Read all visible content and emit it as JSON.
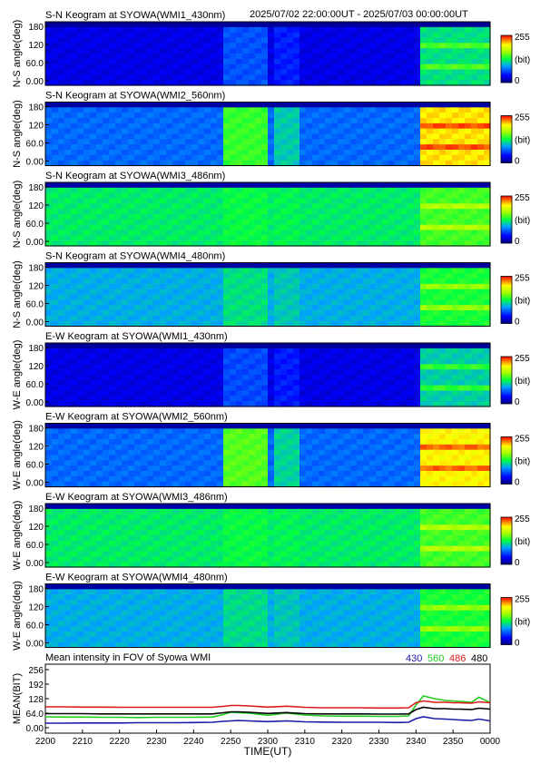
{
  "header": {
    "time_range": "2025/07/02 22:00:00UT - 2025/07/03 00:00:00UT"
  },
  "keogram_ylabels": {
    "ns": "N-S angle(deg)",
    "we": "W-E angle(deg)"
  },
  "keogram_yticks": [
    "180",
    "120",
    "60.0",
    "0.00"
  ],
  "colorbar": {
    "max": "255",
    "unit": "(bit)",
    "min": "0"
  },
  "panels": [
    {
      "title": "S-N Keogram at SYOWA(WMI1_430nm)",
      "axis": "ns",
      "base": 0.12,
      "act": 0.25,
      "ev": 0.45,
      "strip": 0.03
    },
    {
      "title": "S-N Keogram at SYOWA(WMI2_560nm)",
      "axis": "ns",
      "base": 0.28,
      "act": 0.55,
      "ev": 0.82,
      "strip": 0.04
    },
    {
      "title": "S-N Keogram at SYOWA(WMI3_486nm)",
      "axis": "ns",
      "base": 0.47,
      "act": 0.5,
      "ev": 0.56,
      "strip": 0.05
    },
    {
      "title": "S-N Keogram at SYOWA(WMI4_480nm)",
      "axis": "ns",
      "base": 0.37,
      "act": 0.45,
      "ev": 0.52,
      "strip": 0.04
    },
    {
      "title": "E-W Keogram at SYOWA(WMI1_430nm)",
      "axis": "we",
      "base": 0.12,
      "act": 0.24,
      "ev": 0.42,
      "strip": 0.03
    },
    {
      "title": "E-W Keogram at SYOWA(WMI2_560nm)",
      "axis": "we",
      "base": 0.28,
      "act": 0.58,
      "ev": 0.8,
      "strip": 0.04
    },
    {
      "title": "E-W Keogram at SYOWA(WMI3_486nm)",
      "axis": "we",
      "base": 0.47,
      "act": 0.5,
      "ev": 0.56,
      "strip": 0.05
    },
    {
      "title": "E-W Keogram at SYOWA(WMI4_480nm)",
      "axis": "we",
      "base": 0.37,
      "act": 0.44,
      "ev": 0.52,
      "strip": 0.04
    }
  ],
  "mean_panel": {
    "title": "Mean intensity in FOV of Syowa WMI",
    "ylabel": "MEAN(BIT)",
    "xlabel": "TIME(UT)",
    "yticks": [
      "256",
      "192",
      "128",
      "64.0",
      "0.00"
    ],
    "xticks": [
      "2200",
      "2210",
      "2220",
      "2230",
      "2240",
      "2250",
      "2300",
      "2310",
      "2320",
      "2330",
      "2340",
      "2350",
      "0000"
    ],
    "legend": [
      {
        "label": "430",
        "color": "#1a1aa8"
      },
      {
        "label": "560",
        "color": "#22cc22"
      },
      {
        "label": "486",
        "color": "#dd1a1a"
      },
      {
        "label": "480",
        "color": "#000000"
      }
    ]
  },
  "chart_data": {
    "type": "line",
    "title": "Mean intensity in FOV of Syowa WMI",
    "xlabel": "TIME(UT)",
    "ylabel": "MEAN(BIT)",
    "xlim": [
      "2200",
      "0000"
    ],
    "ylim": [
      0,
      256
    ],
    "x": [
      "2200",
      "2205",
      "2210",
      "2215",
      "2220",
      "2225",
      "2230",
      "2235",
      "2240",
      "2245",
      "2248",
      "2250",
      "2252",
      "2255",
      "2300",
      "2305",
      "2310",
      "2315",
      "2320",
      "2325",
      "2330",
      "2335",
      "2338",
      "2340",
      "2342",
      "2345",
      "2348",
      "2350",
      "2352",
      "2355",
      "2357",
      "0000"
    ],
    "series": [
      {
        "name": "430",
        "color": "#1a1aa8",
        "values": [
          20,
          20,
          21,
          21,
          21,
          22,
          22,
          22,
          23,
          24,
          28,
          30,
          32,
          30,
          27,
          30,
          26,
          25,
          24,
          24,
          24,
          23,
          24,
          40,
          48,
          40,
          38,
          36,
          34,
          32,
          38,
          30
        ]
      },
      {
        "name": "560",
        "color": "#22cc22",
        "values": [
          48,
          47,
          47,
          46,
          46,
          45,
          46,
          46,
          46,
          47,
          58,
          68,
          66,
          64,
          55,
          65,
          56,
          52,
          51,
          51,
          50,
          50,
          52,
          100,
          140,
          128,
          120,
          118,
          116,
          112,
          135,
          110
        ]
      },
      {
        "name": "486",
        "color": "#dd1a1a",
        "values": [
          92,
          92,
          91,
          91,
          90,
          90,
          90,
          90,
          90,
          90,
          94,
          98,
          98,
          96,
          91,
          95,
          90,
          88,
          88,
          88,
          87,
          87,
          88,
          110,
          118,
          112,
          112,
          110,
          110,
          108,
          114,
          110
        ]
      },
      {
        "name": "480",
        "color": "#000000",
        "values": [
          62,
          62,
          62,
          61,
          61,
          61,
          61,
          61,
          61,
          61,
          66,
          70,
          70,
          68,
          63,
          67,
          62,
          61,
          61,
          61,
          60,
          60,
          61,
          80,
          90,
          84,
          84,
          82,
          82,
          80,
          86,
          82
        ]
      }
    ]
  }
}
